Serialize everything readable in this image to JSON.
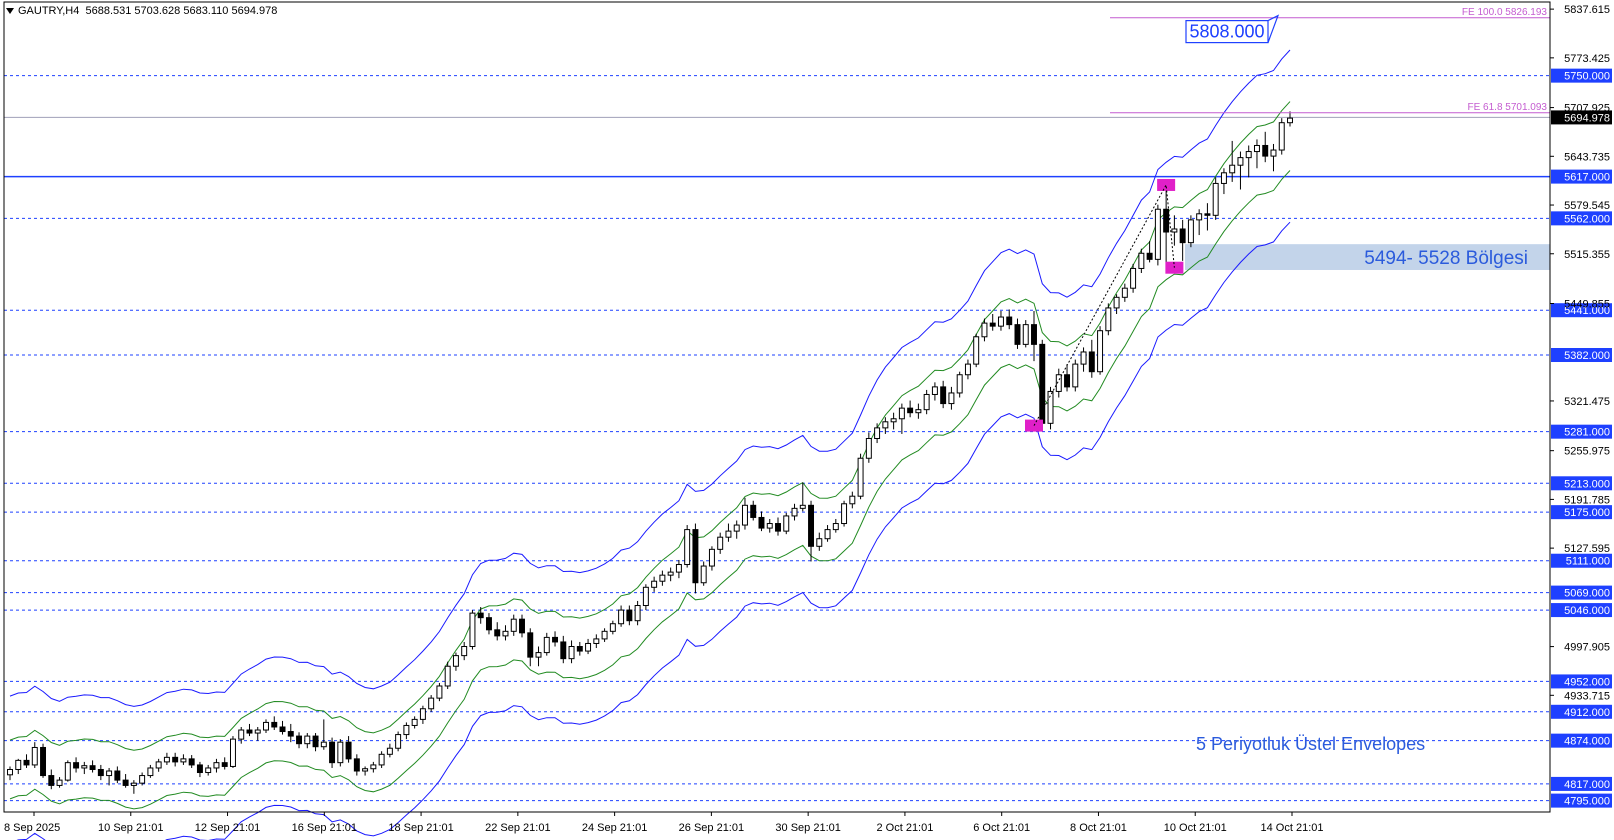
{
  "header": {
    "symbol_tf": "GAUTRY,H4",
    "ohlc": "5688.531 5703.628 5683.110 5694.978"
  },
  "colors": {
    "level_line": "#1e40ff",
    "level_tag_bg": "#1e40ff",
    "current_price_line": "#a0a0b8",
    "current_price_tag_bg": "#000000",
    "fe_line": "#c45cd0",
    "main_level": "#1e40ff",
    "zone_fill": "#c3d4ea",
    "outer_envelope": "#1a1aff",
    "inner_envelope": "#228b22",
    "marker": "#e020c8",
    "annotation_text": "#2b5bdc"
  },
  "price_scale_labels": [
    "5837.615",
    "5773.425",
    "5707.925",
    "5643.735",
    "5579.545",
    "5515.355",
    "5449.855",
    "5321.475",
    "5255.975",
    "5191.785",
    "5127.595",
    "4997.905",
    "4933.715"
  ],
  "horizontal_levels": [
    "5750.000",
    "5617.000",
    "5562.000",
    "5441.000",
    "5382.000",
    "5281.000",
    "5213.000",
    "5175.000",
    "5111.000",
    "5069.000",
    "5046.000",
    "4952.000",
    "4912.000",
    "4874.000",
    "4817.000",
    "4795.000"
  ],
  "main_level": "5617.000",
  "current_price": "5694.978",
  "fib_extensions": [
    {
      "label": "FE 100.0 5826.193",
      "price": 5826.193
    },
    {
      "label": "FE 61.8 5701.093",
      "price": 5701.093
    }
  ],
  "target_label": "5808.000",
  "zone": {
    "label": "5494- 5528 Bölgesi",
    "low": 5494,
    "high": 5528
  },
  "annotation": "5 Periyotluk Üstel Envelopes",
  "time_labels": [
    "8 Sep 2025",
    "10 Sep 21:01",
    "12 Sep 21:01",
    "16 Sep 21:01",
    "18 Sep 21:01",
    "22 Sep 21:01",
    "24 Sep 21:01",
    "26 Sep 21:01",
    "30 Sep 21:01",
    "2 Oct 21:01",
    "6 Oct 21:01",
    "8 Oct 21:01",
    "10 Oct 21:01",
    "14 Oct 21:01"
  ],
  "chart_data": {
    "type": "candlestick",
    "title": "GAUTRY,H4",
    "indicator": "5 Periyotluk Üstel Envelopes",
    "y_range": [
      4780,
      5847
    ],
    "candles": [
      [
        4829,
        4840,
        4822,
        4836
      ],
      [
        4836,
        4850,
        4830,
        4848
      ],
      [
        4848,
        4856,
        4838,
        4842
      ],
      [
        4842,
        4872,
        4838,
        4865
      ],
      [
        4865,
        4870,
        4825,
        4828
      ],
      [
        4828,
        4836,
        4810,
        4815
      ],
      [
        4815,
        4826,
        4812,
        4822
      ],
      [
        4822,
        4848,
        4820,
        4845
      ],
      [
        4845,
        4852,
        4832,
        4838
      ],
      [
        4838,
        4846,
        4830,
        4841
      ],
      [
        4841,
        4848,
        4832,
        4836
      ],
      [
        4836,
        4842,
        4822,
        4828
      ],
      [
        4828,
        4838,
        4815,
        4834
      ],
      [
        4834,
        4840,
        4818,
        4822
      ],
      [
        4822,
        4830,
        4812,
        4815
      ],
      [
        4815,
        4822,
        4804,
        4818
      ],
      [
        4818,
        4832,
        4815,
        4828
      ],
      [
        4828,
        4842,
        4825,
        4838
      ],
      [
        4838,
        4850,
        4833,
        4846
      ],
      [
        4846,
        4858,
        4842,
        4852
      ],
      [
        4852,
        4858,
        4840,
        4846
      ],
      [
        4846,
        4856,
        4842,
        4850
      ],
      [
        4850,
        4855,
        4838,
        4842
      ],
      [
        4842,
        4846,
        4826,
        4832
      ],
      [
        4832,
        4842,
        4828,
        4838
      ],
      [
        4838,
        4850,
        4832,
        4845
      ],
      [
        4845,
        4852,
        4836,
        4840
      ],
      [
        4840,
        4880,
        4838,
        4876
      ],
      [
        4876,
        4892,
        4870,
        4888
      ],
      [
        4888,
        4896,
        4880,
        4884
      ],
      [
        4884,
        4892,
        4874,
        4888
      ],
      [
        4888,
        4902,
        4884,
        4898
      ],
      [
        4898,
        4906,
        4888,
        4892
      ],
      [
        4892,
        4900,
        4882,
        4886
      ],
      [
        4886,
        4896,
        4872,
        4880
      ],
      [
        4880,
        4885,
        4864,
        4870
      ],
      [
        4870,
        4884,
        4864,
        4880
      ],
      [
        4880,
        4884,
        4860,
        4866
      ],
      [
        4866,
        4902,
        4862,
        4872
      ],
      [
        4872,
        4878,
        4838,
        4845
      ],
      [
        4845,
        4876,
        4840,
        4872
      ],
      [
        4872,
        4880,
        4845,
        4850
      ],
      [
        4850,
        4856,
        4828,
        4834
      ],
      [
        4834,
        4840,
        4828,
        4837
      ],
      [
        4837,
        4846,
        4832,
        4842
      ],
      [
        4842,
        4860,
        4838,
        4856
      ],
      [
        4856,
        4870,
        4852,
        4864
      ],
      [
        4864,
        4886,
        4860,
        4882
      ],
      [
        4882,
        4898,
        4876,
        4894
      ],
      [
        4894,
        4906,
        4890,
        4902
      ],
      [
        4902,
        4920,
        4896,
        4916
      ],
      [
        4916,
        4934,
        4912,
        4930
      ],
      [
        4930,
        4950,
        4926,
        4946
      ],
      [
        4946,
        4978,
        4942,
        4972
      ],
      [
        4972,
        4990,
        4966,
        4986
      ],
      [
        4986,
        5004,
        4980,
        4998
      ],
      [
        4998,
        5046,
        4994,
        5042
      ],
      [
        5042,
        5050,
        5028,
        5036
      ],
      [
        5036,
        5042,
        5014,
        5020
      ],
      [
        5020,
        5030,
        5006,
        5012
      ],
      [
        5012,
        5026,
        5006,
        5018
      ],
      [
        5018,
        5040,
        5012,
        5034
      ],
      [
        5034,
        5040,
        5010,
        5016
      ],
      [
        5016,
        5022,
        4972,
        4984
      ],
      [
        4984,
        4998,
        4972,
        4990
      ],
      [
        4990,
        5016,
        4986,
        5010
      ],
      [
        5010,
        5018,
        4998,
        5004
      ],
      [
        5004,
        5012,
        4976,
        4982
      ],
      [
        4982,
        5006,
        4976,
        4998
      ],
      [
        4998,
        5004,
        4986,
        4992
      ],
      [
        4992,
        5008,
        4988,
        5002
      ],
      [
        5002,
        5014,
        4996,
        5008
      ],
      [
        5008,
        5022,
        5004,
        5018
      ],
      [
        5018,
        5032,
        5014,
        5028
      ],
      [
        5028,
        5052,
        5024,
        5046
      ],
      [
        5046,
        5052,
        5026,
        5032
      ],
      [
        5032,
        5058,
        5026,
        5052
      ],
      [
        5052,
        5080,
        5046,
        5076
      ],
      [
        5076,
        5090,
        5070,
        5084
      ],
      [
        5084,
        5098,
        5078,
        5092
      ],
      [
        5092,
        5102,
        5084,
        5096
      ],
      [
        5096,
        5112,
        5088,
        5106
      ],
      [
        5106,
        5158,
        5102,
        5152
      ],
      [
        5152,
        5160,
        5068,
        5082
      ],
      [
        5082,
        5110,
        5078,
        5104
      ],
      [
        5104,
        5130,
        5098,
        5126
      ],
      [
        5126,
        5148,
        5120,
        5142
      ],
      [
        5142,
        5160,
        5136,
        5150
      ],
      [
        5150,
        5164,
        5140,
        5158
      ],
      [
        5158,
        5194,
        5152,
        5184
      ],
      [
        5184,
        5190,
        5164,
        5168
      ],
      [
        5168,
        5176,
        5150,
        5154
      ],
      [
        5154,
        5166,
        5148,
        5160
      ],
      [
        5160,
        5168,
        5144,
        5150
      ],
      [
        5150,
        5174,
        5146,
        5170
      ],
      [
        5170,
        5186,
        5164,
        5180
      ],
      [
        5180,
        5214,
        5176,
        5184
      ],
      [
        5184,
        5190,
        5110,
        5130
      ],
      [
        5130,
        5148,
        5124,
        5140
      ],
      [
        5140,
        5158,
        5136,
        5152
      ],
      [
        5152,
        5166,
        5148,
        5160
      ],
      [
        5160,
        5190,
        5156,
        5186
      ],
      [
        5186,
        5202,
        5180,
        5196
      ],
      [
        5196,
        5252,
        5192,
        5246
      ],
      [
        5246,
        5280,
        5240,
        5272
      ],
      [
        5272,
        5292,
        5266,
        5286
      ],
      [
        5286,
        5300,
        5278,
        5294
      ],
      [
        5294,
        5306,
        5284,
        5298
      ],
      [
        5298,
        5318,
        5278,
        5312
      ],
      [
        5312,
        5322,
        5300,
        5306
      ],
      [
        5306,
        5318,
        5298,
        5310
      ],
      [
        5310,
        5336,
        5304,
        5330
      ],
      [
        5330,
        5346,
        5322,
        5340
      ],
      [
        5340,
        5348,
        5312,
        5318
      ],
      [
        5318,
        5340,
        5310,
        5332
      ],
      [
        5332,
        5360,
        5326,
        5356
      ],
      [
        5356,
        5376,
        5350,
        5370
      ],
      [
        5370,
        5410,
        5366,
        5406
      ],
      [
        5406,
        5430,
        5400,
        5424
      ],
      [
        5424,
        5436,
        5414,
        5420
      ],
      [
        5420,
        5440,
        5414,
        5432
      ],
      [
        5432,
        5442,
        5416,
        5422
      ],
      [
        5422,
        5430,
        5390,
        5396
      ],
      [
        5396,
        5428,
        5392,
        5422
      ],
      [
        5422,
        5440,
        5374,
        5396
      ],
      [
        5396,
        5402,
        5286,
        5292
      ],
      [
        5292,
        5340,
        5284,
        5334
      ],
      [
        5334,
        5364,
        5326,
        5356
      ],
      [
        5356,
        5370,
        5334,
        5340
      ],
      [
        5340,
        5376,
        5334,
        5370
      ],
      [
        5370,
        5392,
        5360,
        5386
      ],
      [
        5386,
        5402,
        5352,
        5360
      ],
      [
        5360,
        5420,
        5356,
        5414
      ],
      [
        5414,
        5450,
        5408,
        5444
      ],
      [
        5444,
        5462,
        5436,
        5458
      ],
      [
        5458,
        5476,
        5452,
        5470
      ],
      [
        5470,
        5502,
        5464,
        5496
      ],
      [
        5496,
        5522,
        5490,
        5516
      ],
      [
        5516,
        5532,
        5504,
        5508
      ],
      [
        5508,
        5580,
        5500,
        5574
      ],
      [
        5574,
        5612,
        5490,
        5544
      ],
      [
        5544,
        5566,
        5526,
        5548
      ],
      [
        5548,
        5560,
        5506,
        5530
      ],
      [
        5530,
        5566,
        5524,
        5560
      ],
      [
        5560,
        5574,
        5540,
        5568
      ],
      [
        5568,
        5582,
        5546,
        5566
      ],
      [
        5566,
        5616,
        5560,
        5608
      ],
      [
        5608,
        5628,
        5594,
        5622
      ],
      [
        5622,
        5664,
        5610,
        5632
      ],
      [
        5632,
        5650,
        5600,
        5642
      ],
      [
        5642,
        5658,
        5616,
        5650
      ],
      [
        5650,
        5666,
        5628,
        5658
      ],
      [
        5658,
        5676,
        5636,
        5644
      ],
      [
        5644,
        5660,
        5624,
        5652
      ],
      [
        5652,
        5694,
        5646,
        5688
      ],
      [
        5688,
        5703,
        5683,
        5694
      ]
    ]
  }
}
